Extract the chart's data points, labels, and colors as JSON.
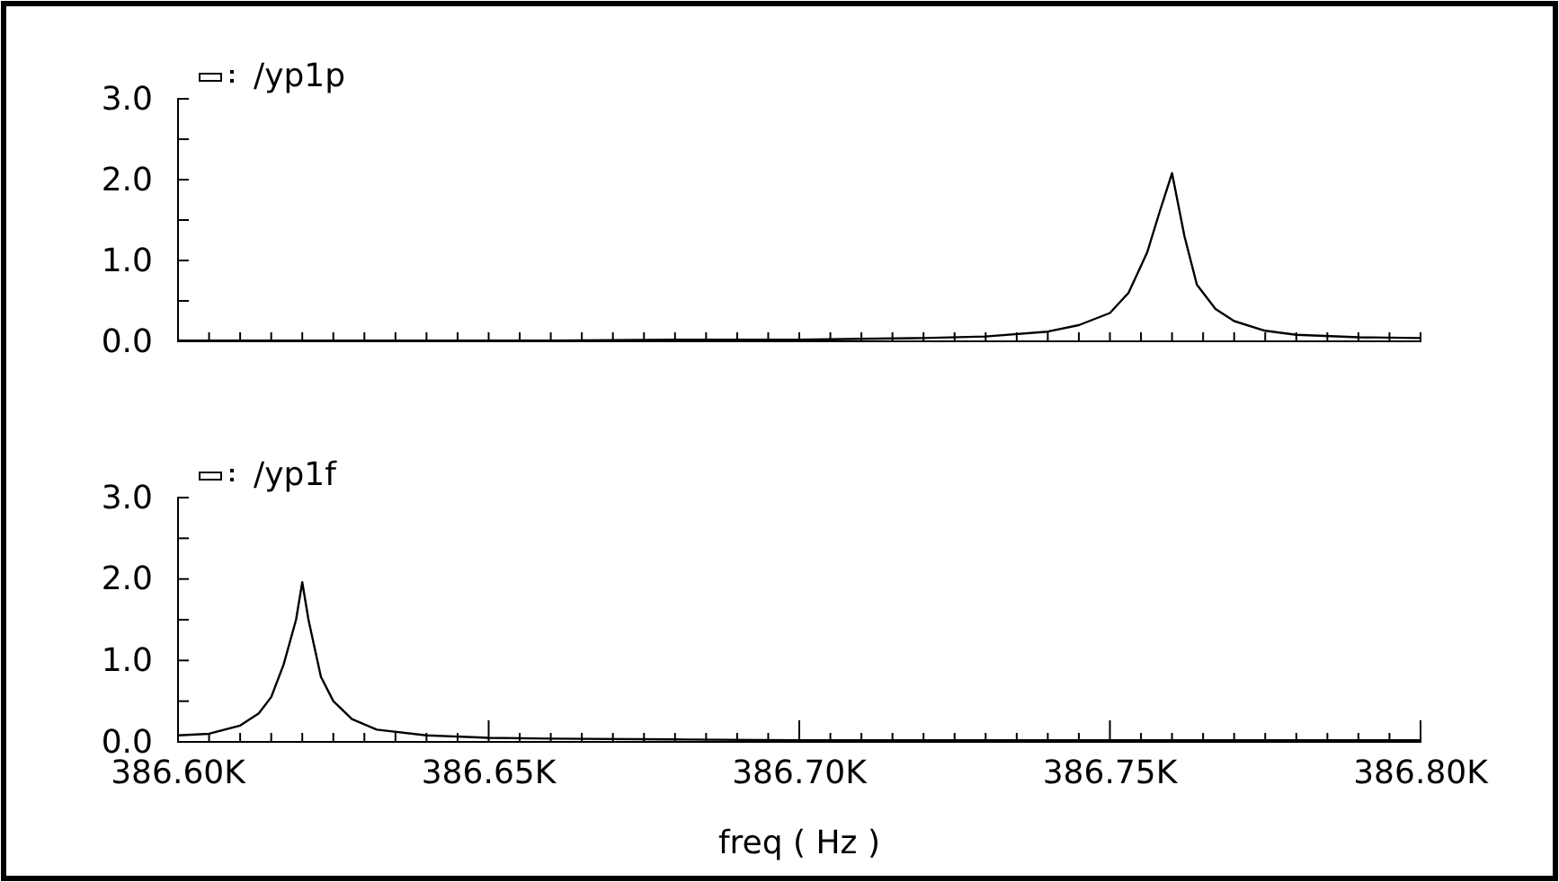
{
  "chart_data": [
    {
      "type": "line",
      "xlim": [
        386.6,
        386.8
      ],
      "ylim": [
        0,
        3
      ],
      "tick_labels": "y",
      "legend": "top left",
      "line_style": "solid",
      "xticks": [
        {
          "value": 386.6,
          "label": null
        },
        {
          "value": 386.605,
          "label": null
        },
        {
          "value": 386.61,
          "label": null
        },
        {
          "value": 386.615,
          "label": null
        },
        {
          "value": 386.62,
          "label": null
        },
        {
          "value": 386.625,
          "label": null
        },
        {
          "value": 386.63,
          "label": null
        },
        {
          "value": 386.635,
          "label": null
        },
        {
          "value": 386.64,
          "label": null
        },
        {
          "value": 386.645,
          "label": null
        },
        {
          "value": 386.65,
          "label": null
        },
        {
          "value": 386.655,
          "label": null
        },
        {
          "value": 386.66,
          "label": null
        },
        {
          "value": 386.665,
          "label": null
        },
        {
          "value": 386.67,
          "label": null
        },
        {
          "value": 386.675,
          "label": null
        },
        {
          "value": 386.68,
          "label": null
        },
        {
          "value": 386.685,
          "label": null
        },
        {
          "value": 386.69,
          "label": null
        },
        {
          "value": 386.695,
          "label": null
        },
        {
          "value": 386.7,
          "label": null
        },
        {
          "value": 386.705,
          "label": null
        },
        {
          "value": 386.71,
          "label": null
        },
        {
          "value": 386.715,
          "label": null
        },
        {
          "value": 386.72,
          "label": null
        },
        {
          "value": 386.725,
          "label": null
        },
        {
          "value": 386.73,
          "label": null
        },
        {
          "value": 386.735,
          "label": null
        },
        {
          "value": 386.74,
          "label": null
        },
        {
          "value": 386.745,
          "label": null
        },
        {
          "value": 386.75,
          "label": null
        },
        {
          "value": 386.755,
          "label": null
        },
        {
          "value": 386.76,
          "label": null
        },
        {
          "value": 386.765,
          "label": null
        },
        {
          "value": 386.77,
          "label": null
        },
        {
          "value": 386.775,
          "label": null
        },
        {
          "value": 386.78,
          "label": null
        },
        {
          "value": 386.785,
          "label": null
        },
        {
          "value": 386.79,
          "label": null
        },
        {
          "value": 386.795,
          "label": null
        },
        {
          "value": 386.8,
          "label": null
        }
      ],
      "yticks": [
        {
          "value": 0,
          "label": "0.0"
        },
        {
          "value": 0.5,
          "label": null
        },
        {
          "value": 1,
          "label": "1.0"
        },
        {
          "value": 1.5,
          "label": null
        },
        {
          "value": 2,
          "label": "2.0"
        },
        {
          "value": 2.5,
          "label": null
        },
        {
          "value": 3,
          "label": "3.0"
        }
      ],
      "series": [
        {
          "name": "/yp1p",
          "color": "#000000",
          "x": [
            386.6,
            386.62,
            386.64,
            386.66,
            386.68,
            386.7,
            386.71,
            386.72,
            386.73,
            386.74,
            386.745,
            386.75,
            386.753,
            386.756,
            386.758,
            386.76,
            386.762,
            386.764,
            386.767,
            386.77,
            386.775,
            386.78,
            386.79,
            386.8
          ],
          "values": [
            0.01,
            0.01,
            0.01,
            0.01,
            0.02,
            0.02,
            0.03,
            0.04,
            0.06,
            0.12,
            0.2,
            0.35,
            0.6,
            1.1,
            1.6,
            2.08,
            1.3,
            0.7,
            0.4,
            0.25,
            0.13,
            0.08,
            0.05,
            0.04
          ]
        }
      ]
    },
    {
      "type": "line",
      "xlim": [
        386.6,
        386.8
      ],
      "ylim": [
        0,
        3
      ],
      "xlabel": "freq ( Hz )",
      "legend": "top left",
      "line_style": "solid",
      "xticks": [
        {
          "value": 386.6,
          "label": "386.60K"
        },
        {
          "value": 386.605,
          "label": null
        },
        {
          "value": 386.61,
          "label": null
        },
        {
          "value": 386.615,
          "label": null
        },
        {
          "value": 386.62,
          "label": null
        },
        {
          "value": 386.625,
          "label": null
        },
        {
          "value": 386.63,
          "label": null
        },
        {
          "value": 386.635,
          "label": null
        },
        {
          "value": 386.64,
          "label": null
        },
        {
          "value": 386.645,
          "label": null
        },
        {
          "value": 386.65,
          "label": "386.65K"
        },
        {
          "value": 386.655,
          "label": null
        },
        {
          "value": 386.66,
          "label": null
        },
        {
          "value": 386.665,
          "label": null
        },
        {
          "value": 386.67,
          "label": null
        },
        {
          "value": 386.675,
          "label": null
        },
        {
          "value": 386.68,
          "label": null
        },
        {
          "value": 386.685,
          "label": null
        },
        {
          "value": 386.69,
          "label": null
        },
        {
          "value": 386.695,
          "label": null
        },
        {
          "value": 386.7,
          "label": "386.70K"
        },
        {
          "value": 386.705,
          "label": null
        },
        {
          "value": 386.71,
          "label": null
        },
        {
          "value": 386.715,
          "label": null
        },
        {
          "value": 386.72,
          "label": null
        },
        {
          "value": 386.725,
          "label": null
        },
        {
          "value": 386.73,
          "label": null
        },
        {
          "value": 386.735,
          "label": null
        },
        {
          "value": 386.74,
          "label": null
        },
        {
          "value": 386.745,
          "label": null
        },
        {
          "value": 386.75,
          "label": "386.75K"
        },
        {
          "value": 386.755,
          "label": null
        },
        {
          "value": 386.76,
          "label": null
        },
        {
          "value": 386.765,
          "label": null
        },
        {
          "value": 386.77,
          "label": null
        },
        {
          "value": 386.775,
          "label": null
        },
        {
          "value": 386.78,
          "label": null
        },
        {
          "value": 386.785,
          "label": null
        },
        {
          "value": 386.79,
          "label": null
        },
        {
          "value": 386.795,
          "label": null
        },
        {
          "value": 386.8,
          "label": "386.80K"
        }
      ],
      "yticks": [
        {
          "value": 0,
          "label": "0.0"
        },
        {
          "value": 0.5,
          "label": null
        },
        {
          "value": 1,
          "label": "1.0"
        },
        {
          "value": 1.5,
          "label": null
        },
        {
          "value": 2,
          "label": "2.0"
        },
        {
          "value": 2.5,
          "label": null
        },
        {
          "value": 3,
          "label": "3.0"
        }
      ],
      "series": [
        {
          "name": "/yp1f",
          "color": "#000000",
          "x": [
            386.6,
            386.605,
            386.61,
            386.613,
            386.615,
            386.617,
            386.619,
            386.62,
            386.621,
            386.623,
            386.625,
            386.628,
            386.632,
            386.64,
            386.65,
            386.66,
            386.68,
            386.7,
            386.74,
            386.8
          ],
          "values": [
            0.08,
            0.1,
            0.2,
            0.35,
            0.55,
            0.95,
            1.5,
            1.96,
            1.5,
            0.8,
            0.5,
            0.28,
            0.15,
            0.08,
            0.05,
            0.04,
            0.03,
            0.02,
            0.02,
            0.02
          ]
        }
      ]
    }
  ]
}
